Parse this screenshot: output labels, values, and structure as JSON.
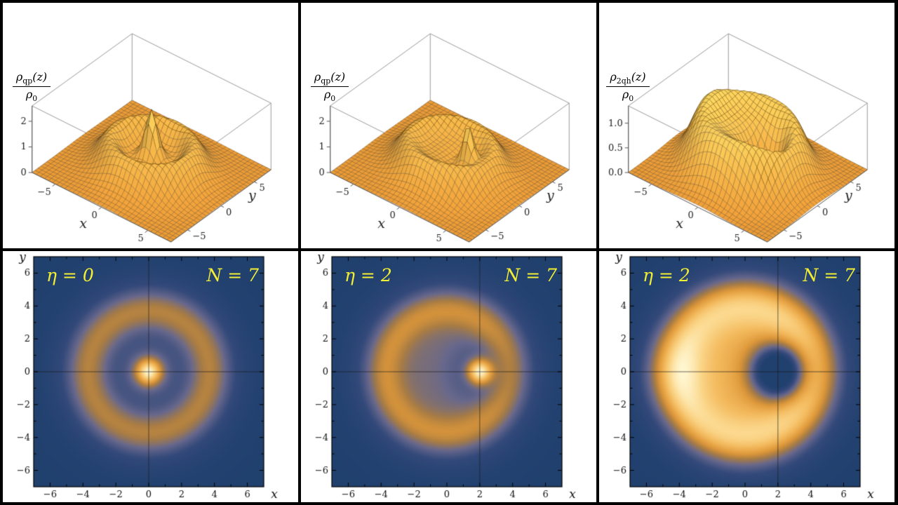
{
  "style": {
    "background": "#000000",
    "panel_bg": "#ffffff",
    "annotation_color": "#f2ee33",
    "surface_base_low": "#f2a038",
    "surface_base_high": "#ffdf66",
    "mesh_line": "rgba(70,45,8,0.5)",
    "box_edge": "#9a9a9a",
    "tick_color": "#222222",
    "density_colormap": [
      {
        "t": 0.0,
        "c": "#20406e"
      },
      {
        "t": 0.18,
        "c": "#33497a"
      },
      {
        "t": 0.34,
        "c": "#68688c"
      },
      {
        "t": 0.48,
        "c": "#a87c44"
      },
      {
        "t": 0.6,
        "c": "#dd9739"
      },
      {
        "t": 0.75,
        "c": "#f3b95c"
      },
      {
        "t": 0.88,
        "c": "#fbd88d"
      },
      {
        "t": 1.0,
        "c": "#fff6d0"
      }
    ]
  },
  "chart_data": [
    {
      "id": "surface-quasiparticle-centered",
      "type": "surface3d",
      "xlabel": "x",
      "ylabel": "y",
      "zlabel": {
        "num_base": "ρ",
        "num_sub": "qp",
        "num_after": "(z)",
        "den_base": "ρ",
        "den_sub": "0"
      },
      "xlim": [
        -7.5,
        7.5
      ],
      "ylim": [
        -7.5,
        7.5
      ],
      "zmax": 2.6,
      "x_tick_values": [
        -5,
        0,
        5
      ],
      "x_tick_labels": [
        "−5",
        "0",
        "5"
      ],
      "y_tick_values": [
        -5,
        0,
        5
      ],
      "y_tick_labels": [
        "−5",
        "0",
        "5"
      ],
      "z_tick_values": [
        0,
        1,
        2
      ],
      "z_tick_labels": [
        "0",
        "1",
        "2"
      ],
      "field": {
        "terms": [
          {
            "kind": "disk",
            "amp": 0.82,
            "radius": 5.0,
            "soft": 0.8
          },
          {
            "kind": "ring",
            "amp": 0.55,
            "radius": 3.8,
            "sigma": 1.15
          },
          {
            "kind": "ring",
            "amp": -0.28,
            "radius": 1.9,
            "sigma": 1.0
          },
          {
            "kind": "gauss",
            "amp": 1.6,
            "x": 0,
            "y": 0,
            "sigma": 0.75
          }
        ]
      }
    },
    {
      "id": "surface-quasiparticle-offset",
      "type": "surface3d",
      "xlabel": "x",
      "ylabel": "y",
      "zlabel": {
        "num_base": "ρ",
        "num_sub": "qp",
        "num_after": "(z)",
        "den_base": "ρ",
        "den_sub": "0"
      },
      "xlim": [
        -7.5,
        7.5
      ],
      "ylim": [
        -7.5,
        7.5
      ],
      "zmax": 2.6,
      "x_tick_values": [
        -5,
        0,
        5
      ],
      "x_tick_labels": [
        "−5",
        "0",
        "5"
      ],
      "y_tick_values": [
        -5,
        0,
        5
      ],
      "y_tick_labels": [
        "−5",
        "0",
        "5"
      ],
      "z_tick_values": [
        0,
        1,
        2
      ],
      "z_tick_labels": [
        "0",
        "1",
        "2"
      ],
      "field": {
        "terms": [
          {
            "kind": "disk",
            "amp": 0.82,
            "radius": 5.0,
            "soft": 0.8
          },
          {
            "kind": "ring",
            "amp": 0.55,
            "radius": 3.8,
            "sigma": 1.15
          },
          {
            "kind": "gauss",
            "amp": -0.45,
            "x": 2,
            "y": 0,
            "sigma": 1.8
          },
          {
            "kind": "gauss",
            "amp": 1.75,
            "x": 2,
            "y": 0,
            "sigma": 0.75
          }
        ]
      }
    },
    {
      "id": "surface-two-quasiholes",
      "type": "surface3d",
      "xlabel": "x",
      "ylabel": "y",
      "zlabel": {
        "num_base": "ρ",
        "num_sub": "2qh",
        "num_after": "(z)",
        "den_base": "ρ",
        "den_sub": "0"
      },
      "xlim": [
        -7.5,
        7.5
      ],
      "ylim": [
        -7.5,
        7.5
      ],
      "zmax": 1.35,
      "x_tick_values": [
        -5,
        0,
        5
      ],
      "x_tick_labels": [
        "−5",
        "0",
        "5"
      ],
      "y_tick_values": [
        -5,
        0,
        5
      ],
      "y_tick_labels": [
        "−5",
        "0",
        "5"
      ],
      "z_tick_values": [
        0,
        0.5,
        1
      ],
      "z_tick_labels": [
        "0.0",
        "0.5",
        "1.0"
      ],
      "field": {
        "terms": [
          {
            "kind": "disk",
            "amp": 0.88,
            "radius": 5.1,
            "soft": 0.8
          },
          {
            "kind": "ring",
            "amp": 0.38,
            "radius": 4.2,
            "sigma": 1.5
          },
          {
            "kind": "gauss",
            "amp": -1.3,
            "x": 2,
            "y": 0,
            "sigma": 1.6
          },
          {
            "kind": "gauss",
            "amp": 0.15,
            "x": -4,
            "y": 0,
            "sigma": 2.2
          }
        ]
      }
    },
    {
      "id": "density-eta0",
      "type": "heatmap",
      "xlabel": "x",
      "ylabel": "y",
      "lim": [
        -7,
        7
      ],
      "tick_values": [
        -6,
        -4,
        -2,
        0,
        2,
        4,
        6
      ],
      "tick_labels": [
        "−6",
        "−4",
        "−2",
        "0",
        "2",
        "4",
        "6"
      ],
      "minor_tick_values": [
        -5,
        -3,
        -1,
        1,
        3,
        5
      ],
      "axis_origin": {
        "x": 0,
        "y": 0
      },
      "annotations": [
        {
          "label": "η = 0",
          "pos": "top-left"
        },
        {
          "label": "N = 7",
          "pos": "top-right"
        }
      ],
      "field_ref": 0
    },
    {
      "id": "density-eta2-quasiparticle",
      "type": "heatmap",
      "xlabel": "x",
      "ylabel": "y",
      "lim": [
        -7,
        7
      ],
      "tick_values": [
        -6,
        -4,
        -2,
        0,
        2,
        4,
        6
      ],
      "tick_labels": [
        "−6",
        "−4",
        "−2",
        "0",
        "2",
        "4",
        "6"
      ],
      "minor_tick_values": [
        -5,
        -3,
        -1,
        1,
        3,
        5
      ],
      "axis_origin": {
        "x": 2,
        "y": 0
      },
      "annotations": [
        {
          "label": "η = 2",
          "pos": "top-left"
        },
        {
          "label": "N = 7",
          "pos": "top-right"
        }
      ],
      "field_ref": 1
    },
    {
      "id": "density-eta2-quasiholes",
      "type": "heatmap",
      "xlabel": "x",
      "ylabel": "y",
      "lim": [
        -7,
        7
      ],
      "tick_values": [
        -6,
        -4,
        -2,
        0,
        2,
        4,
        6
      ],
      "tick_labels": [
        "−6",
        "−4",
        "−2",
        "0",
        "2",
        "4",
        "6"
      ],
      "minor_tick_values": [
        -5,
        -3,
        -1,
        1,
        3,
        5
      ],
      "axis_origin": {
        "x": 2,
        "y": 0
      },
      "annotations": [
        {
          "label": "η = 2",
          "pos": "top-left"
        },
        {
          "label": "N = 7",
          "pos": "top-right"
        }
      ],
      "field_ref": 2
    }
  ]
}
